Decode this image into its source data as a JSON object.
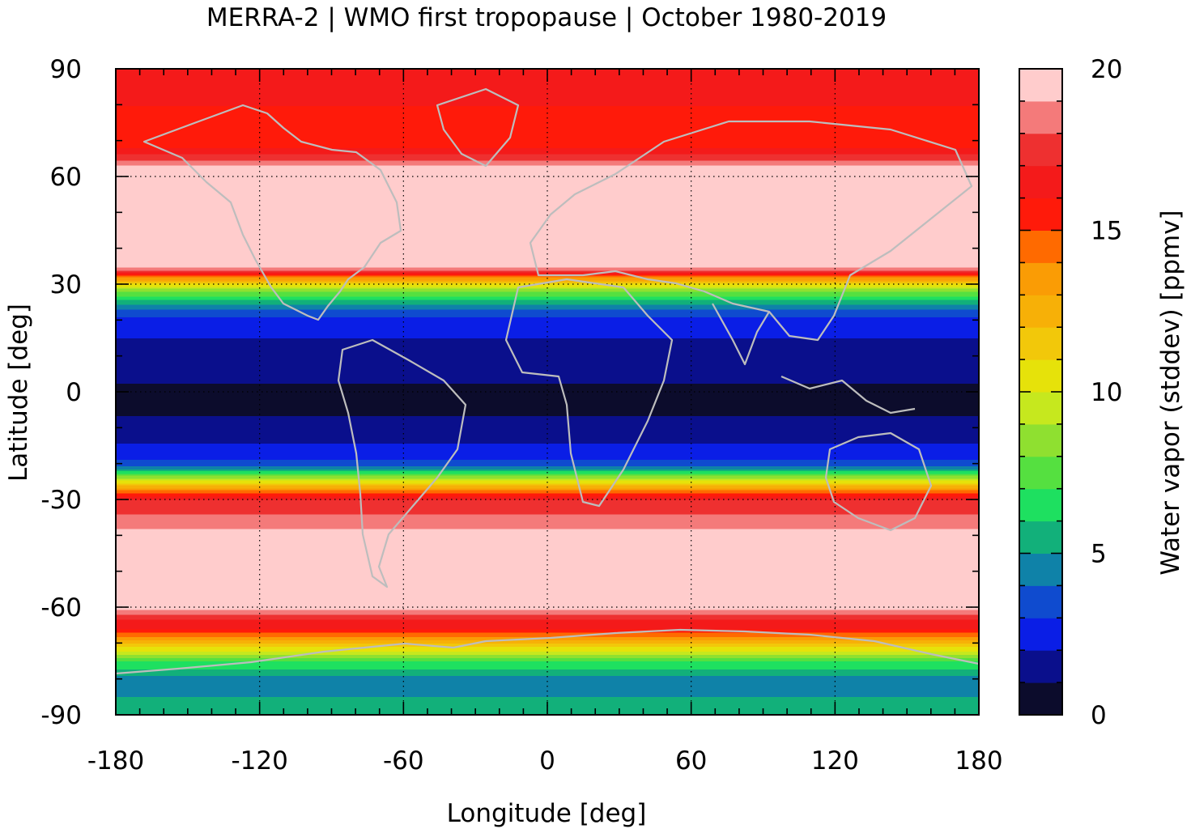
{
  "chart_data": {
    "type": "heatmap",
    "title": "MERRA-2 | WMO first tropopause | October 1980-2019",
    "xlabel": "Longitude [deg]",
    "ylabel": "Latitude [deg]",
    "xlim": [
      -180,
      180
    ],
    "ylim": [
      -90,
      90
    ],
    "xticks": [
      "-180",
      "-120",
      "-60",
      "0",
      "60",
      "120",
      "180"
    ],
    "yticks": [
      "-90",
      "-60",
      "-30",
      "0",
      "30",
      "60",
      "90"
    ],
    "grid": true,
    "colorbar": {
      "label": "Water vapor (stddev) [ppmv]",
      "range": [
        0,
        20
      ],
      "ticks": [
        "0",
        "5",
        "10",
        "15",
        "20"
      ],
      "levels": [
        {
          "from": 0,
          "to": 1,
          "color": "#0c0c2c"
        },
        {
          "from": 1,
          "to": 2,
          "color": "#0a0f8c"
        },
        {
          "from": 2,
          "to": 3,
          "color": "#0a1ee6"
        },
        {
          "from": 3,
          "to": 4,
          "color": "#0f4bcf"
        },
        {
          "from": 4,
          "to": 5,
          "color": "#0f82a8"
        },
        {
          "from": 5,
          "to": 6,
          "color": "#12b07a"
        },
        {
          "from": 6,
          "to": 7,
          "color": "#1ee060"
        },
        {
          "from": 7,
          "to": 8,
          "color": "#55e040"
        },
        {
          "from": 8,
          "to": 9,
          "color": "#8fe030"
        },
        {
          "from": 9,
          "to": 10,
          "color": "#c6e81e"
        },
        {
          "from": 10,
          "to": 11,
          "color": "#e6e20a"
        },
        {
          "from": 11,
          "to": 12,
          "color": "#f2c80a"
        },
        {
          "from": 12,
          "to": 13,
          "color": "#f7b007"
        },
        {
          "from": 13,
          "to": 14,
          "color": "#fa9c05"
        },
        {
          "from": 14,
          "to": 15,
          "color": "#ff6a00"
        },
        {
          "from": 15,
          "to": 16,
          "color": "#ff1a0a"
        },
        {
          "from": 16,
          "to": 17,
          "color": "#f41a1a"
        },
        {
          "from": 17,
          "to": 18,
          "color": "#ee3030"
        },
        {
          "from": 18,
          "to": 19,
          "color": "#f47a7a"
        },
        {
          "from": 19,
          "to": 20,
          "color": "#ffcccc"
        }
      ]
    },
    "zonal_profile": {
      "lat": [
        -90,
        -85,
        -80,
        -75,
        -72,
        -69,
        -66,
        -63,
        -60,
        -55,
        -40,
        -30,
        -28,
        -26,
        -24,
        -22,
        -20,
        -17,
        -14,
        -10,
        -5,
        0,
        5,
        10,
        15,
        20,
        23,
        26,
        29,
        31,
        33,
        35,
        40,
        55,
        63,
        68,
        72,
        80,
        90
      ],
      "value": [
        5,
        5,
        4.5,
        7,
        10,
        13,
        16,
        17,
        19.5,
        19.5,
        19.5,
        17,
        15,
        12,
        9,
        6,
        3.5,
        2.5,
        2,
        1.5,
        0.8,
        0.8,
        1.2,
        1.8,
        2,
        2.5,
        4,
        6,
        9,
        12,
        16,
        19.5,
        19.5,
        19.5,
        19,
        16,
        15.5,
        16,
        16
      ]
    }
  }
}
